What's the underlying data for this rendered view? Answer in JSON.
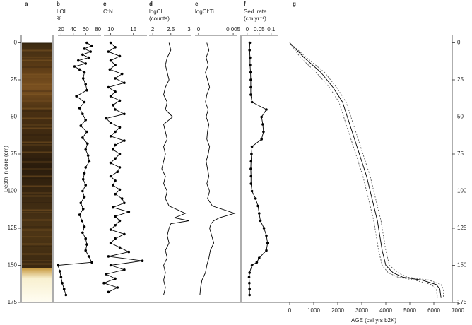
{
  "shared": {
    "y_label": "Depth in core (cm)",
    "ylim": [
      -5,
      175
    ],
    "yticks": [
      0,
      25,
      50,
      75,
      100,
      125,
      150,
      175
    ]
  },
  "chart_data": [
    {
      "type": "image",
      "panel": "a"
    },
    {
      "type": "line",
      "panel": "b",
      "title": "LOI",
      "unit": "%",
      "markers": true,
      "color": "#000000",
      "xlim": [
        15,
        85
      ],
      "xticks": [
        20,
        40,
        60,
        80
      ],
      "depth": [
        0,
        2,
        4,
        6,
        8,
        10,
        12,
        14,
        16,
        18,
        20,
        24,
        28,
        32,
        36,
        40,
        44,
        48,
        52,
        56,
        60,
        64,
        68,
        72,
        76,
        80,
        84,
        88,
        92,
        96,
        100,
        104,
        108,
        112,
        116,
        120,
        124,
        128,
        132,
        136,
        140,
        144,
        148,
        150,
        154,
        158,
        162,
        166,
        170
      ],
      "values": [
        62,
        70,
        58,
        68,
        55,
        65,
        48,
        60,
        42,
        50,
        58,
        56,
        60,
        62,
        45,
        58,
        50,
        55,
        60,
        52,
        62,
        55,
        63,
        60,
        64,
        66,
        60,
        58,
        56,
        60,
        55,
        58,
        52,
        56,
        50,
        54,
        58,
        55,
        60,
        62,
        60,
        65,
        70,
        15,
        18,
        20,
        22,
        25,
        28
      ]
    },
    {
      "type": "line",
      "panel": "c",
      "title": "C:N",
      "markers": true,
      "color": "#000000",
      "xlim": [
        8.5,
        18
      ],
      "xticks": [
        10,
        15
      ],
      "depth": [
        0,
        3,
        6,
        9,
        12,
        15,
        18,
        21,
        24,
        27,
        30,
        33,
        36,
        39,
        42,
        45,
        48,
        51,
        54,
        57,
        60,
        63,
        66,
        69,
        72,
        75,
        78,
        81,
        84,
        87,
        90,
        93,
        96,
        99,
        102,
        105,
        108,
        111,
        114,
        117,
        120,
        123,
        126,
        129,
        132,
        135,
        138,
        141,
        144,
        147,
        150,
        153,
        156,
        159,
        162,
        165,
        168
      ],
      "values": [
        10,
        11,
        9.5,
        12,
        10,
        11,
        9.8,
        12.5,
        11,
        13,
        9.5,
        11,
        10,
        12,
        10.5,
        11,
        13,
        9,
        10,
        12,
        11,
        10,
        13,
        11,
        10.5,
        12,
        11,
        10,
        12,
        11.5,
        10,
        11,
        10.5,
        12,
        11,
        12.5,
        13,
        10.5,
        14,
        11,
        12,
        11,
        10,
        13,
        11,
        10,
        12,
        14,
        9.5,
        17,
        10,
        13,
        9,
        11,
        8.5,
        11.5,
        9.5
      ]
    },
    {
      "type": "line",
      "panel": "d",
      "title": "logCl",
      "unit": "(counts)",
      "markers": false,
      "color": "#000000",
      "xlim": [
        1.9,
        3.05
      ],
      "xticks": [
        2,
        2.5,
        3
      ],
      "depth": [
        0,
        5,
        10,
        15,
        20,
        25,
        30,
        35,
        40,
        45,
        50,
        55,
        60,
        65,
        70,
        75,
        80,
        85,
        90,
        95,
        100,
        105,
        110,
        115,
        118,
        120,
        122,
        125,
        130,
        135,
        140,
        145,
        150,
        155,
        160,
        165,
        170
      ],
      "values": [
        2.45,
        2.5,
        2.4,
        2.35,
        2.4,
        2.45,
        2.35,
        2.3,
        2.4,
        2.35,
        2.55,
        2.3,
        2.35,
        2.4,
        2.3,
        2.35,
        2.3,
        2.25,
        2.35,
        2.3,
        2.4,
        2.35,
        2.45,
        2.9,
        2.6,
        3.0,
        2.5,
        2.45,
        2.4,
        2.45,
        2.35,
        2.4,
        2.3,
        2.35,
        2.3,
        2.35,
        2.3
      ]
    },
    {
      "type": "line",
      "panel": "e",
      "title": "logCl:Ti",
      "markers": false,
      "color": "#000000",
      "xlim": [
        -0.0005,
        0.0055
      ],
      "xticks": [
        0,
        0.005
      ],
      "depth": [
        0,
        5,
        10,
        15,
        20,
        25,
        30,
        35,
        40,
        45,
        50,
        55,
        60,
        65,
        70,
        75,
        80,
        85,
        90,
        95,
        100,
        105,
        110,
        115,
        118,
        120,
        122,
        125,
        130,
        135,
        140,
        145,
        150,
        155,
        160,
        165,
        170
      ],
      "values": [
        0.0012,
        0.0015,
        0.0011,
        0.0014,
        0.001,
        0.0013,
        0.0016,
        0.0012,
        0.001,
        0.0014,
        0.0011,
        0.0015,
        0.0013,
        0.0012,
        0.0016,
        0.0014,
        0.0011,
        0.0013,
        0.0015,
        0.0012,
        0.0016,
        0.0013,
        0.002,
        0.0052,
        0.003,
        0.0022,
        0.0018,
        0.0016,
        0.0019,
        0.0022,
        0.0017,
        0.0015,
        0.0012,
        0.001,
        0.0005,
        0.0003,
        0.0002
      ]
    },
    {
      "type": "line",
      "panel": "f",
      "title": "Sed. rate",
      "unit": "(cm yr⁻¹)",
      "markers": true,
      "color": "#000000",
      "xlim": [
        -0.02,
        0.13
      ],
      "xticks": [
        0,
        0.05,
        0.1
      ],
      "depth": [
        0,
        5,
        10,
        15,
        20,
        25,
        30,
        35,
        40,
        45,
        50,
        55,
        60,
        65,
        70,
        75,
        80,
        85,
        90,
        95,
        100,
        105,
        110,
        115,
        120,
        125,
        130,
        135,
        140,
        145,
        148,
        150,
        155,
        158,
        162,
        166,
        170
      ],
      "values": [
        0.011,
        0.01,
        0.012,
        0.012,
        0.014,
        0.015,
        0.015,
        0.015,
        0.02,
        0.08,
        0.06,
        0.065,
        0.068,
        0.06,
        0.02,
        0.018,
        0.016,
        0.015,
        0.016,
        0.016,
        0.02,
        0.035,
        0.045,
        0.05,
        0.055,
        0.07,
        0.08,
        0.085,
        0.08,
        0.05,
        0.04,
        0.02,
        0.01,
        0.008,
        0.009,
        0.01,
        0.01
      ]
    },
    {
      "type": "age-model",
      "panel": "g",
      "x_label": "AGE (cal yrs b2K)",
      "xlim": [
        0,
        7000
      ],
      "xticks": [
        0,
        1000,
        2000,
        3000,
        4000,
        5000,
        6000,
        7000
      ],
      "series": [
        {
          "style": "solid",
          "color": "#000000",
          "depth": [
            0,
            10,
            20,
            30,
            40,
            50,
            60,
            70,
            80,
            90,
            100,
            110,
            120,
            130,
            140,
            150,
            155,
            158,
            160,
            163,
            166,
            172
          ],
          "values": [
            0,
            600,
            1300,
            1800,
            2200,
            2400,
            2600,
            2800,
            3000,
            3200,
            3350,
            3500,
            3650,
            3750,
            3850,
            4000,
            4300,
            4700,
            5500,
            6100,
            6250,
            6300
          ]
        },
        {
          "style": "dashed",
          "color": "#555555",
          "depth": [
            0,
            10,
            20,
            30,
            40,
            50,
            60,
            70,
            80,
            90,
            100,
            110,
            120,
            130,
            140,
            150,
            155,
            158,
            160,
            163,
            166,
            172
          ],
          "values": [
            0,
            450,
            1100,
            1650,
            2050,
            2250,
            2450,
            2650,
            2850,
            3050,
            3200,
            3350,
            3500,
            3600,
            3700,
            3850,
            4100,
            4500,
            5200,
            5900,
            6100,
            6150
          ]
        },
        {
          "style": "dashed",
          "color": "#555555",
          "depth": [
            0,
            10,
            20,
            30,
            40,
            50,
            60,
            70,
            80,
            90,
            100,
            110,
            120,
            130,
            140,
            150,
            155,
            158,
            160,
            163,
            166,
            172
          ],
          "values": [
            0,
            700,
            1450,
            1950,
            2350,
            2550,
            2750,
            2950,
            3150,
            3350,
            3500,
            3650,
            3800,
            3900,
            4000,
            4150,
            4500,
            4900,
            5800,
            6300,
            6400,
            6400
          ]
        }
      ]
    }
  ]
}
